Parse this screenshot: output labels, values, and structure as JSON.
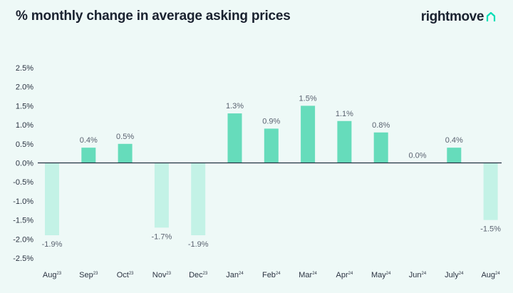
{
  "header": {
    "title": "% monthly change in average asking prices",
    "brand": "rightmove",
    "brand_icon": "house-roof-icon",
    "brand_color": "#00deb6"
  },
  "chart_data": {
    "type": "bar",
    "title": "% monthly change in average asking prices",
    "xlabel": "",
    "ylabel": "",
    "categories": [
      {
        "month": "Aug",
        "year": "23"
      },
      {
        "month": "Sep",
        "year": "23"
      },
      {
        "month": "Oct",
        "year": "23"
      },
      {
        "month": "Nov",
        "year": "23"
      },
      {
        "month": "Dec",
        "year": "23"
      },
      {
        "month": "Jan",
        "year": "24"
      },
      {
        "month": "Feb",
        "year": "24"
      },
      {
        "month": "Mar",
        "year": "24"
      },
      {
        "month": "Apr",
        "year": "24"
      },
      {
        "month": "May",
        "year": "24"
      },
      {
        "month": "Jun",
        "year": "24"
      },
      {
        "month": "July",
        "year": "24"
      },
      {
        "month": "Aug",
        "year": "24"
      }
    ],
    "values": [
      -1.9,
      0.4,
      0.5,
      -1.7,
      -1.9,
      1.3,
      0.9,
      1.5,
      1.1,
      0.8,
      0.0,
      0.4,
      -1.5
    ],
    "data_labels": [
      "-1.9%",
      "0.4%",
      "0.5%",
      "-1.7%",
      "-1.9%",
      "1.3%",
      "0.9%",
      "1.5%",
      "1.1%",
      "0.8%",
      "0.0%",
      "0.4%",
      "-1.5%"
    ],
    "ylim": [
      -2.5,
      2.5
    ],
    "yticks": [
      2.5,
      2.0,
      1.5,
      1.0,
      0.5,
      0.0,
      -0.5,
      -1.0,
      -1.5,
      -2.0,
      -2.5
    ],
    "ytick_labels": [
      "2.5%",
      "2.0%",
      "1.5%",
      "1.0%",
      "0.5%",
      "0.0%",
      "-0.5%",
      "-1.0%",
      "-1.5%",
      "-2.0%",
      "-2.5%"
    ],
    "grid": false,
    "legend": "none",
    "colors": {
      "positive": "#66dcbb",
      "negative": "#c3f2e6",
      "axis": "#243042"
    }
  }
}
